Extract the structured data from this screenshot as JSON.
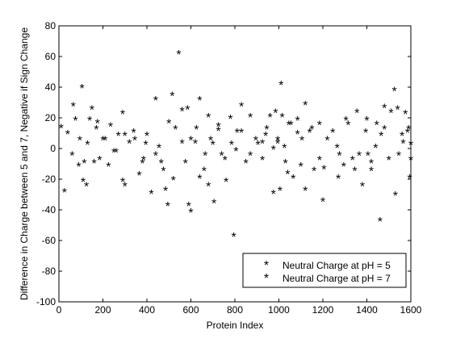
{
  "chart_data": {
    "type": "scatter",
    "title": "",
    "xlabel": "Protein Index",
    "ylabel": "Difference in Charge between 5 and 7, Negative if Sign Change",
    "xlim": [
      0,
      1600
    ],
    "ylim": [
      -100,
      80
    ],
    "xticks": [
      0,
      200,
      400,
      600,
      800,
      1000,
      1200,
      1400,
      1600
    ],
    "yticks": [
      -100,
      -80,
      -60,
      -40,
      -20,
      0,
      20,
      40,
      60,
      80
    ],
    "grid": false,
    "legend": {
      "position": "bottom-right"
    },
    "marker": "*",
    "series": [
      {
        "name": "Neutral Charge at pH = 5",
        "color": "#ff0000",
        "x": [
          65,
          95,
          110,
          125,
          140,
          160,
          175,
          200,
          225,
          260,
          290,
          300,
          340,
          385,
          400,
          440,
          465,
          485,
          500,
          520,
          560,
          585,
          590,
          600,
          625,
          640,
          665,
          680,
          690,
          705,
          725,
          755,
          785,
          805,
          830,
          870,
          895,
          925,
          940,
          975,
          985,
          995,
          1005,
          1015,
          1025,
          1040,
          1055,
          1085,
          1105,
          1120,
          1150,
          1185,
          1205,
          1265,
          1275,
          1305,
          1345,
          1365,
          1395,
          1405,
          1420,
          1440,
          1465,
          1480,
          1510,
          1530,
          1540,
          1565,
          1585,
          1595,
          1600
        ],
        "y": [
          27,
          5,
          -22,
          -25,
          18,
          -10,
          16,
          5,
          -12,
          -3,
          -22,
          8,
          10,
          -8,
          8,
          -5,
          -10,
          -28,
          16,
          -21,
          3,
          25,
          -38,
          -42,
          12,
          -20,
          -5,
          -25,
          5,
          -36,
          11,
          -8,
          2,
          -2,
          10,
          -5,
          5,
          3,
          8,
          -1,
          23,
          3,
          -28,
          20,
          0,
          -17,
          15,
          9,
          5,
          -28,
          12,
          -8,
          -14,
          0,
          -5,
          18,
          -15,
          -5,
          10,
          -5,
          -15,
          0,
          8,
          12,
          23,
          -31,
          25,
          3,
          10,
          -20,
          -8
        ]
      },
      {
        "name": "Neutral Charge at pH = 7",
        "color": "#0000ff",
        "x": [
          10,
          25,
          40,
          60,
          75,
          90,
          105,
          115,
          130,
          150,
          170,
          185,
          210,
          235,
          250,
          270,
          290,
          300,
          320,
          345,
          365,
          380,
          395,
          420,
          440,
          455,
          475,
          495,
          515,
          530,
          545,
          560,
          575,
          600,
          620,
          640,
          660,
          680,
          700,
          725,
          740,
          760,
          780,
          795,
          810,
          830,
          850,
          870,
          885,
          905,
          925,
          945,
          960,
          975,
          995,
          1010,
          1030,
          1045,
          1065,
          1085,
          1100,
          1120,
          1140,
          1160,
          1185,
          1200,
          1220,
          1245,
          1270,
          1295,
          1315,
          1335,
          1355,
          1380,
          1400,
          1420,
          1445,
          1460,
          1480,
          1500,
          1525,
          1545,
          1560,
          1575,
          1590,
          1600
        ],
        "y": [
          13,
          -29,
          9,
          -5,
          18,
          -12,
          39,
          -10,
          2,
          25,
          12,
          -8,
          5,
          14,
          -3,
          8,
          22,
          -25,
          3,
          5,
          -18,
          -10,
          2,
          -30,
          31,
          0,
          -15,
          -38,
          34,
          12,
          61,
          24,
          -10,
          5,
          3,
          31,
          -15,
          20,
          2,
          14,
          -5,
          -22,
          19,
          -58,
          10,
          27,
          -10,
          20,
          -87,
          2,
          -8,
          12,
          20,
          -30,
          5,
          41,
          -10,
          15,
          -20,
          18,
          -12,
          28,
          10,
          -15,
          15,
          -35,
          5,
          10,
          -20,
          -12,
          15,
          -8,
          23,
          -25,
          18,
          -10,
          15,
          -48,
          26,
          -8,
          37,
          -5,
          8,
          22,
          12,
          2
        ]
      }
    ]
  }
}
